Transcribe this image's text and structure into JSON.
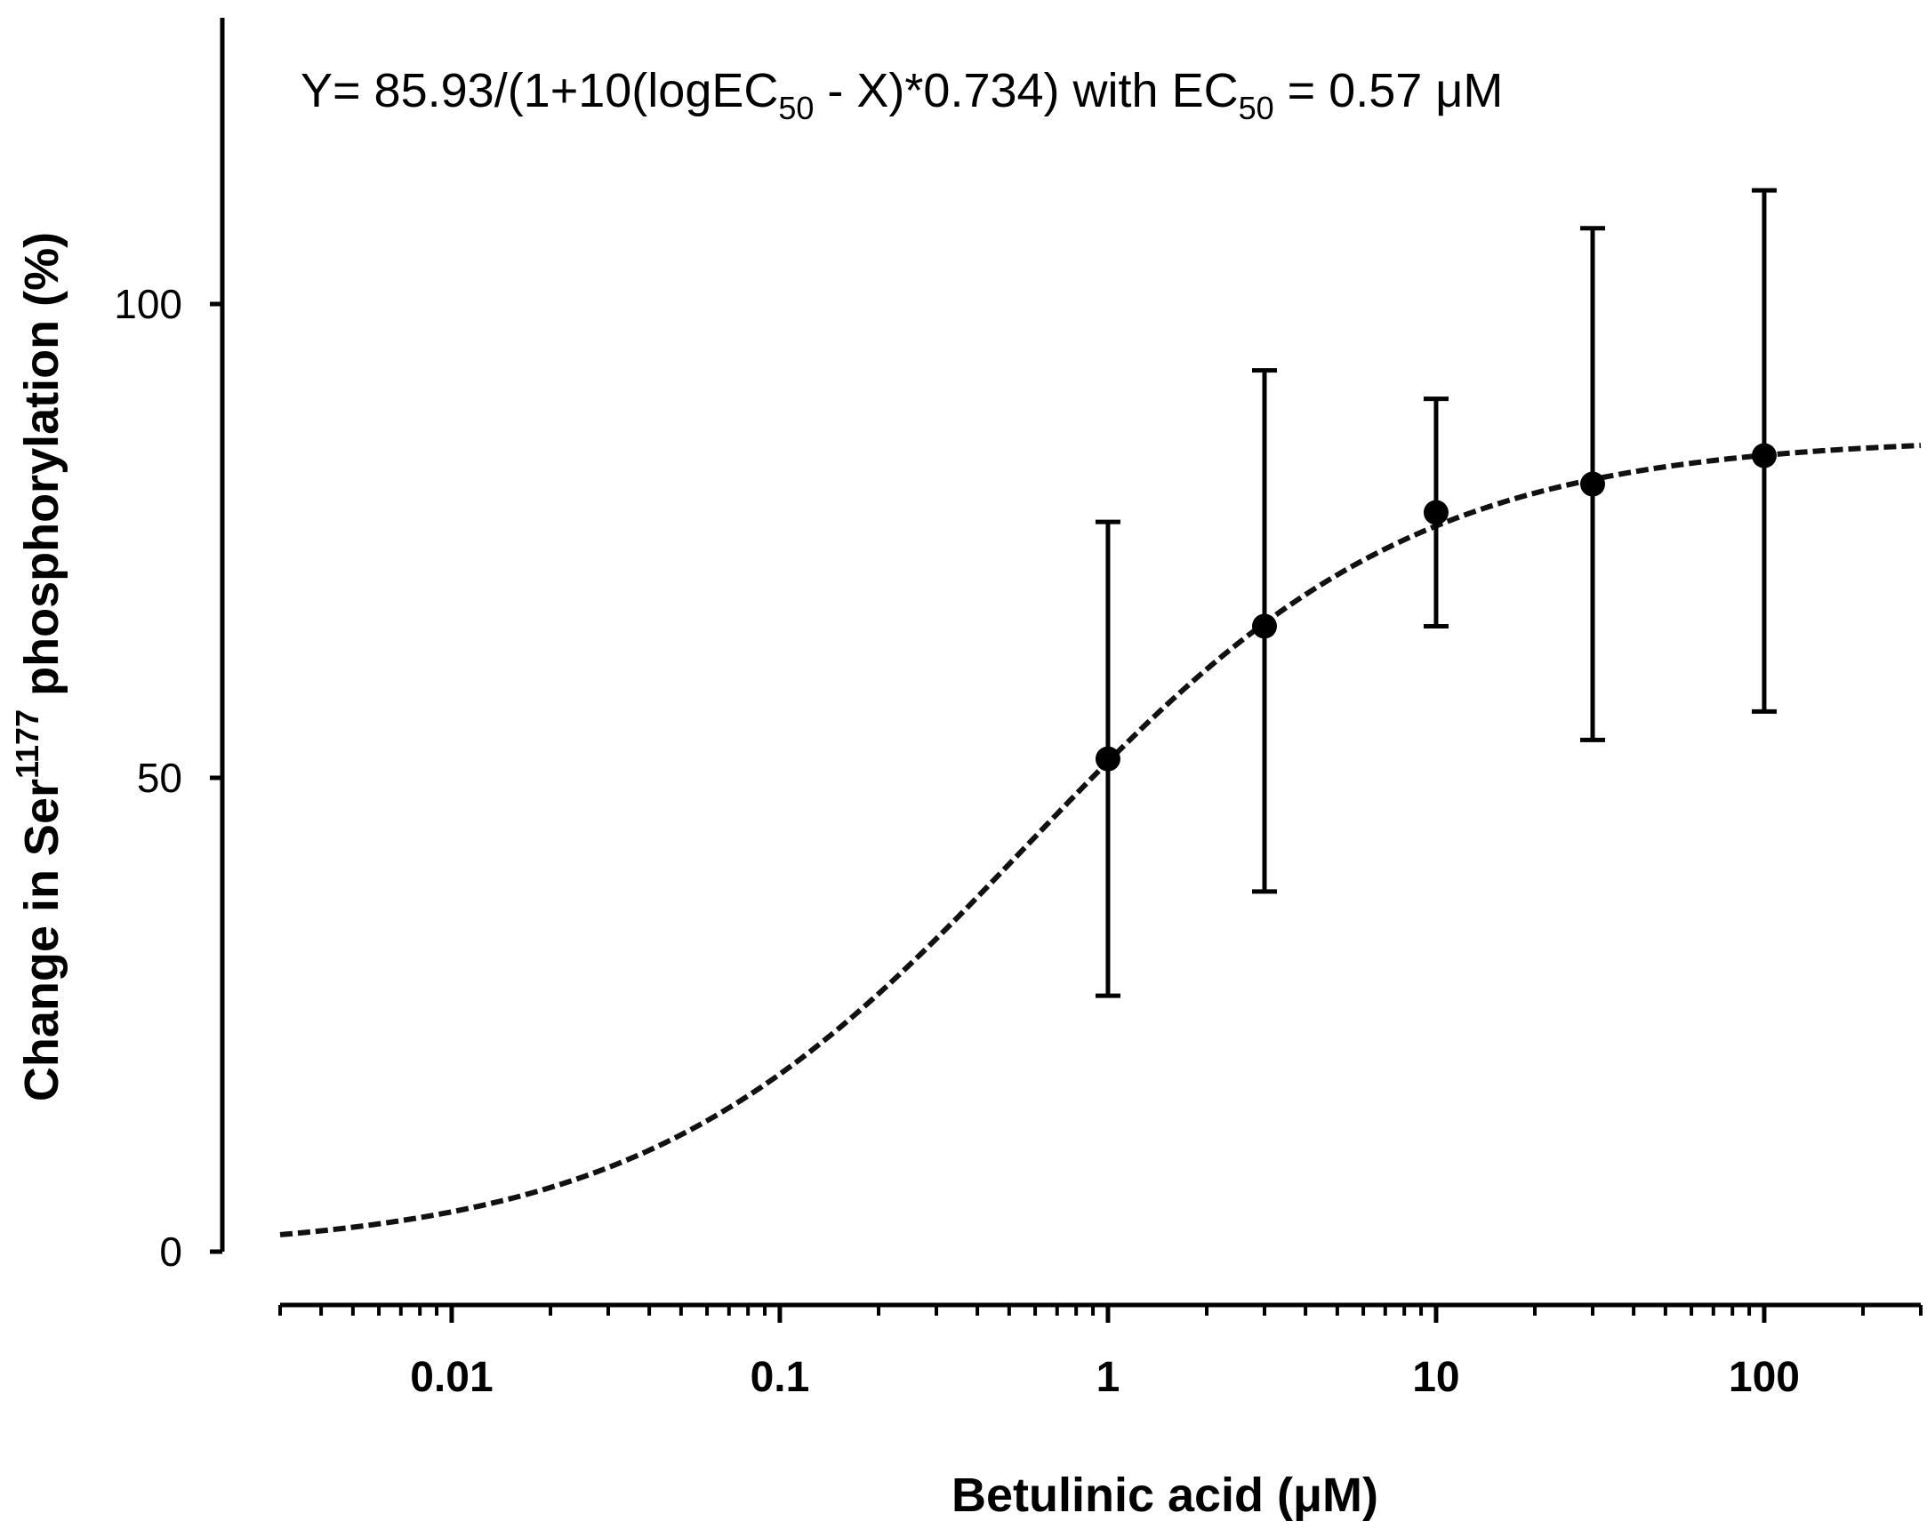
{
  "chart_data": {
    "type": "scatter",
    "x_scale": "log",
    "xlabel": "Betulinic acid (μM)",
    "ylabel_parts": [
      "Change in Ser",
      "1177",
      " phosphorylation (%)"
    ],
    "annotation_parts": [
      "Y= 85.93/(1+10(logEC",
      "50",
      " - X)*0.734) with EC",
      "50",
      " = 0.57 μM"
    ],
    "xlim": [
      0.003,
      300
    ],
    "ylim": [
      0,
      130
    ],
    "x_ticks": [
      {
        "value": 0.01,
        "label": "0.01"
      },
      {
        "value": 0.1,
        "label": "0.1"
      },
      {
        "value": 1,
        "label": "1"
      },
      {
        "value": 10,
        "label": "10"
      },
      {
        "value": 100,
        "label": "100"
      }
    ],
    "y_ticks": [
      {
        "value": 0,
        "label": "0"
      },
      {
        "value": 50,
        "label": "50"
      },
      {
        "value": 100,
        "label": "100"
      }
    ],
    "points": [
      {
        "x": 1,
        "y": 52,
        "lower": 27,
        "upper": 77
      },
      {
        "x": 3,
        "y": 66,
        "lower": 38,
        "upper": 93
      },
      {
        "x": 10,
        "y": 78,
        "lower": 66,
        "upper": 90
      },
      {
        "x": 30,
        "y": 81,
        "lower": 54,
        "upper": 108
      },
      {
        "x": 100,
        "y": 84,
        "lower": 57,
        "upper": 112
      }
    ],
    "fit": {
      "type": "dashed",
      "top": 85.93,
      "ec50": 0.57,
      "hill": 0.734
    },
    "legend": "none",
    "grid": false
  }
}
